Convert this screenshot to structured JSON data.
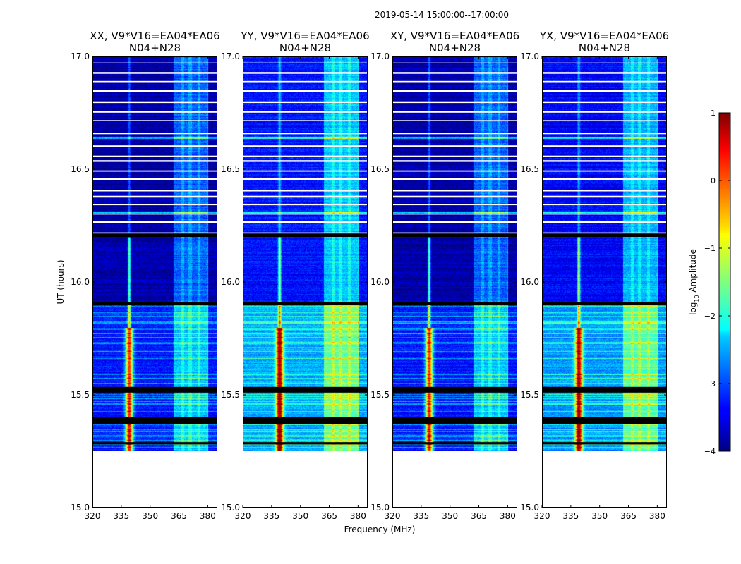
{
  "figure_title": "2019-05-14  15:00:00--17:00:00",
  "chart_data": {
    "type": "heatmap",
    "xlabel": "Frequency (MHz)",
    "ylabel": "UT (hours)",
    "xlim": [
      320,
      385
    ],
    "ylim": [
      15.0,
      17.0
    ],
    "xticks": [
      320,
      335,
      350,
      365,
      380
    ],
    "yticks": [
      15.0,
      15.5,
      16.0,
      16.5,
      17.0
    ],
    "ytick_labels": [
      "15.0",
      "15.5",
      "16.0",
      "16.5",
      "17.0"
    ],
    "data_start_ut": 15.25,
    "strong_line_mhz": 339,
    "rfi_band_mhz": [
      362,
      380
    ],
    "flagged_black_rows_ut": [
      [
        15.28,
        15.29
      ],
      [
        15.37,
        15.4
      ],
      [
        15.51,
        15.535
      ],
      [
        15.9,
        15.91
      ],
      [
        16.2,
        16.215
      ]
    ],
    "panels": [
      {
        "title_line1": "XX, V9*V16=EA04*EA06",
        "title_line2": "N04+N28",
        "bg_level": -3.8
      },
      {
        "title_line1": "YY, V9*V16=EA04*EA06",
        "title_line2": "N04+N28",
        "bg_level": -3.3
      },
      {
        "title_line1": "XY, V9*V16=EA04*EA06",
        "title_line2": "N04+N28",
        "bg_level": -3.8
      },
      {
        "title_line1": "YX, V9*V16=EA04*EA06",
        "title_line2": "N04+N28",
        "bg_level": -3.4
      }
    ],
    "colorbar": {
      "label_prefix": "log",
      "label_sub": "10",
      "label_suffix": " Amplitude",
      "range": [
        -4,
        1
      ],
      "ticks": [
        1,
        0,
        -1,
        -2,
        -3,
        -4
      ],
      "tick_labels": [
        "1",
        "0",
        "−1",
        "−2",
        "−3",
        "−4"
      ],
      "colormap": "jet"
    }
  },
  "colors": {
    "jet_low": "#00007f",
    "jet_high": "#7f0000",
    "flag": "#000000",
    "no_data": "#ffffff"
  }
}
